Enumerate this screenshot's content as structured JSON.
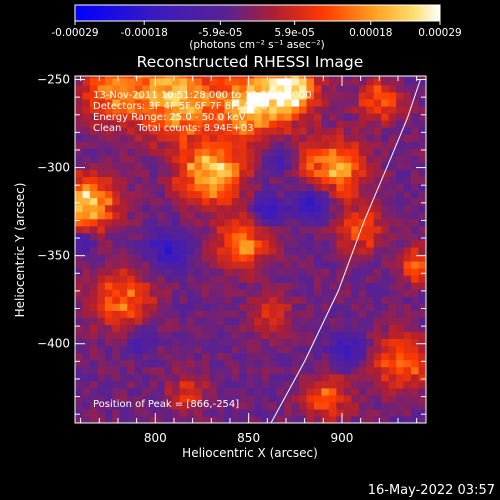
{
  "colorbar": {
    "tick_labels": [
      "-0.00029",
      "-0.00018",
      "-5.9e-05",
      "5.9e-05",
      "0.00018",
      "0.00029"
    ],
    "tick_values": [
      -0.00029,
      -0.00018,
      -5.9e-05,
      5.9e-05,
      0.00018,
      0.00029
    ],
    "range": [
      -0.00029,
      0.00029
    ],
    "unit_label": "(photons cm⁻² s⁻¹ asec⁻²)",
    "colors": [
      "#0000ff",
      "#7a1fc8",
      "#c2261e",
      "#ff6a00",
      "#ffcc40",
      "#ffffff"
    ]
  },
  "chart_data": {
    "type": "heatmap",
    "title": "Reconstructed RHESSI Image",
    "xlabel": "Heliocentric X (arcsec)",
    "ylabel": "Heliocentric Y (arcsec)",
    "xlim": [
      757,
      945
    ],
    "ylim": [
      -445,
      -248
    ],
    "x_ticks": [
      800,
      850,
      900
    ],
    "y_ticks": [
      -250,
      -300,
      -350,
      -400
    ],
    "x_tick_labels": [
      "800",
      "850",
      "900"
    ],
    "y_tick_labels": [
      "−250",
      "−300",
      "−350",
      "−400"
    ],
    "limb_curve": [
      [
        862,
        -445
      ],
      [
        880,
        -410
      ],
      [
        898,
        -370
      ],
      [
        912,
        -330
      ],
      [
        926,
        -295
      ],
      [
        935,
        -272
      ],
      [
        942,
        -250
      ]
    ],
    "peak": [
      866,
      -254
    ],
    "hot_regions": [
      {
        "x": 775,
        "y": -258,
        "r": 18,
        "v": 0.00018
      },
      {
        "x": 808,
        "y": -263,
        "r": 24,
        "v": 0.00024
      },
      {
        "x": 848,
        "y": -266,
        "r": 20,
        "v": 0.00026
      },
      {
        "x": 870,
        "y": -258,
        "r": 16,
        "v": 0.00029
      },
      {
        "x": 828,
        "y": -305,
        "r": 18,
        "v": 0.00027
      },
      {
        "x": 762,
        "y": -322,
        "r": 16,
        "v": 0.00028
      },
      {
        "x": 893,
        "y": -302,
        "r": 18,
        "v": 0.00022
      },
      {
        "x": 918,
        "y": -264,
        "r": 12,
        "v": 0.00016
      },
      {
        "x": 845,
        "y": -345,
        "r": 16,
        "v": 0.00018
      },
      {
        "x": 780,
        "y": -377,
        "r": 18,
        "v": 0.00017
      },
      {
        "x": 908,
        "y": -337,
        "r": 14,
        "v": 0.00014
      },
      {
        "x": 938,
        "y": -357,
        "r": 10,
        "v": 0.00019
      },
      {
        "x": 930,
        "y": -412,
        "r": 18,
        "v": 0.00016
      },
      {
        "x": 890,
        "y": -432,
        "r": 14,
        "v": 0.00015
      },
      {
        "x": 860,
        "y": -385,
        "r": 12,
        "v": 0.00012
      },
      {
        "x": 816,
        "y": -430,
        "r": 12,
        "v": 0.0001
      }
    ],
    "cold_regions": [
      {
        "x": 805,
        "y": -348,
        "r": 12,
        "v": -0.00016
      },
      {
        "x": 858,
        "y": -326,
        "r": 10,
        "v": -0.00014
      },
      {
        "x": 882,
        "y": -322,
        "r": 12,
        "v": -0.00017
      },
      {
        "x": 902,
        "y": -405,
        "r": 12,
        "v": -0.00013
      },
      {
        "x": 760,
        "y": -343,
        "r": 8,
        "v": -0.00012
      },
      {
        "x": 790,
        "y": -400,
        "r": 9,
        "v": -0.0001
      },
      {
        "x": 865,
        "y": -298,
        "r": 8,
        "v": -0.0001
      }
    ]
  },
  "annotations": {
    "time": "13-Nov-2011 10:51:28.000 to 10:57:28.000",
    "detectors": "Detectors: 3F 4F 5F 6F 7F 8F, Att 0",
    "energy": "Energy Range: 25.0 - 50.0 keV",
    "method_counts": "Clean     Total counts: 8.94E+03",
    "peak_position": "Position of Peak = [866,-254]"
  },
  "footer": {
    "date": "16-May-2022 03:57"
  }
}
